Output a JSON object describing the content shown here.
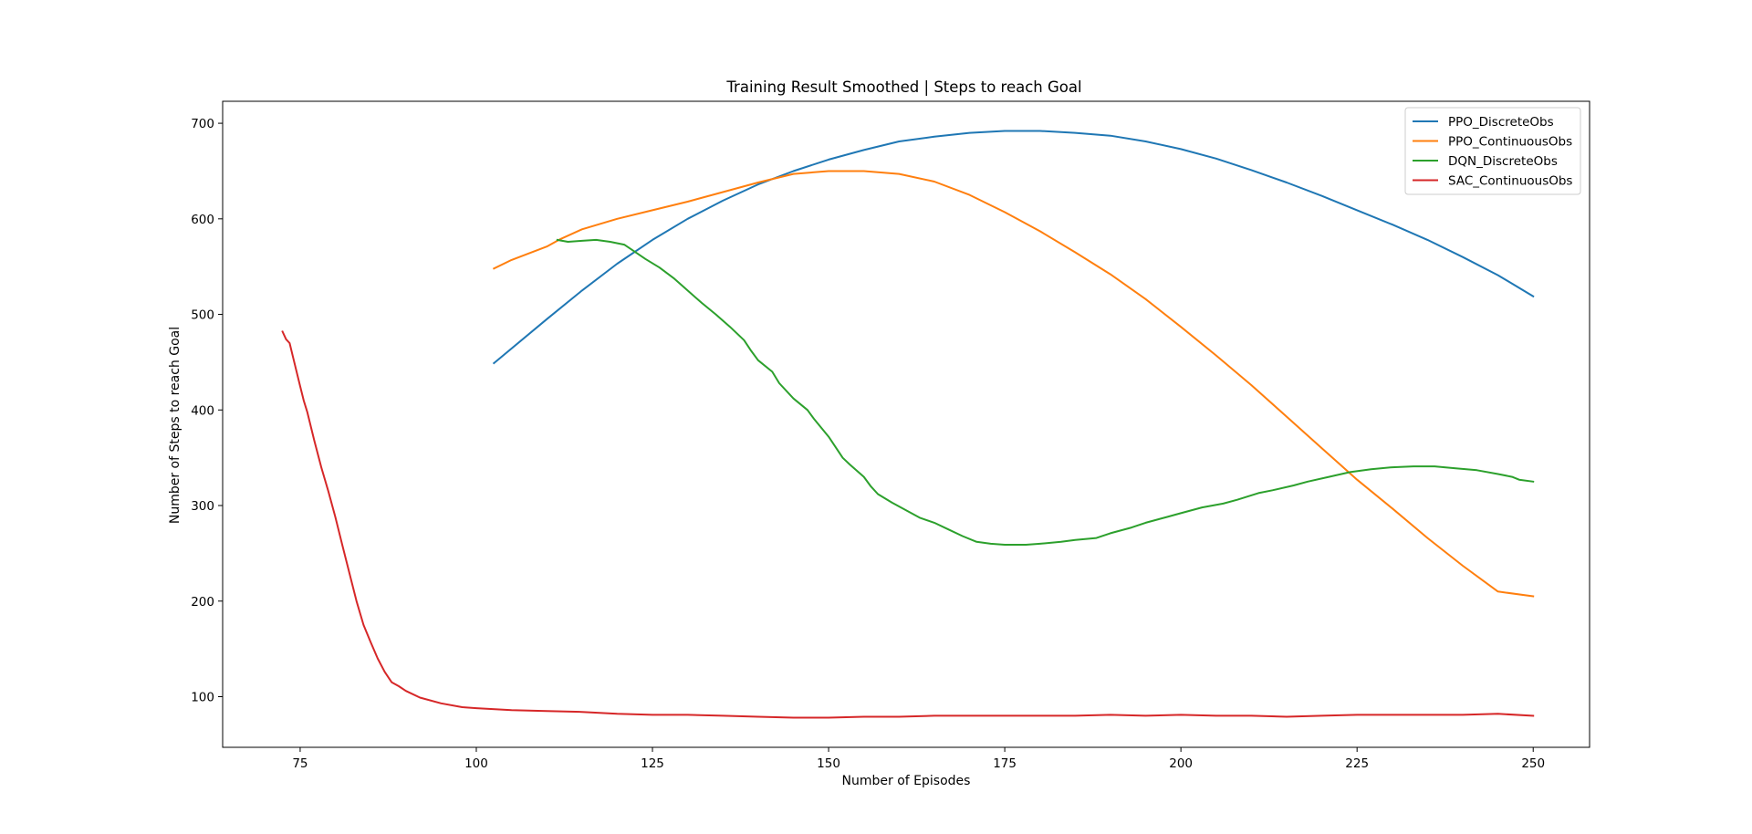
{
  "chart_data": {
    "type": "line",
    "title": "Training Result Smoothed | Steps to reach Goal",
    "xlabel": "Number of Episodes",
    "ylabel": "Number of Steps to reach Goal",
    "xlim": [
      64,
      258
    ],
    "ylim": [
      47,
      723
    ],
    "xticks": [
      75,
      100,
      125,
      150,
      175,
      200,
      225,
      250
    ],
    "yticks": [
      100,
      200,
      300,
      400,
      500,
      600,
      700
    ],
    "grid": false,
    "legend_position": "upper-right",
    "series": [
      {
        "name": "PPO_DiscreteObs",
        "color": "#1f77b4",
        "points": [
          [
            102.5,
            449
          ],
          [
            110,
            495
          ],
          [
            115,
            525
          ],
          [
            120,
            553
          ],
          [
            125,
            578
          ],
          [
            130,
            600
          ],
          [
            135,
            619
          ],
          [
            140,
            636
          ],
          [
            145,
            650
          ],
          [
            150,
            662
          ],
          [
            155,
            672
          ],
          [
            160,
            681
          ],
          [
            165,
            686
          ],
          [
            170,
            690
          ],
          [
            175,
            692
          ],
          [
            180,
            692
          ],
          [
            185,
            690
          ],
          [
            190,
            687
          ],
          [
            195,
            681
          ],
          [
            200,
            673
          ],
          [
            205,
            663
          ],
          [
            210,
            651
          ],
          [
            215,
            638
          ],
          [
            220,
            624
          ],
          [
            225,
            609
          ],
          [
            230,
            594
          ],
          [
            235,
            578
          ],
          [
            240,
            560
          ],
          [
            245,
            541
          ],
          [
            250,
            519
          ]
        ]
      },
      {
        "name": "PPO_ContinuousObs",
        "color": "#ff7f0e",
        "points": [
          [
            102.5,
            548
          ],
          [
            105,
            557
          ],
          [
            110,
            571
          ],
          [
            112,
            579
          ],
          [
            115,
            589
          ],
          [
            120,
            600
          ],
          [
            125,
            609
          ],
          [
            130,
            618
          ],
          [
            135,
            628
          ],
          [
            140,
            638
          ],
          [
            145,
            647
          ],
          [
            150,
            650
          ],
          [
            155,
            650
          ],
          [
            160,
            647
          ],
          [
            165,
            639
          ],
          [
            170,
            625
          ],
          [
            175,
            607
          ],
          [
            180,
            587
          ],
          [
            185,
            565
          ],
          [
            190,
            542
          ],
          [
            195,
            516
          ],
          [
            200,
            487
          ],
          [
            205,
            457
          ],
          [
            210,
            426
          ],
          [
            215,
            393
          ],
          [
            220,
            360
          ],
          [
            225,
            327
          ],
          [
            230,
            297
          ],
          [
            235,
            266
          ],
          [
            240,
            237
          ],
          [
            245,
            210
          ],
          [
            250,
            205
          ]
        ]
      },
      {
        "name": "DQN_DiscreteObs",
        "color": "#2ca02c",
        "points": [
          [
            111.5,
            578
          ],
          [
            113,
            576
          ],
          [
            115,
            577
          ],
          [
            117,
            578
          ],
          [
            119,
            576
          ],
          [
            121,
            573
          ],
          [
            122,
            568
          ],
          [
            124,
            558
          ],
          [
            126,
            549
          ],
          [
            128,
            538
          ],
          [
            130,
            525
          ],
          [
            132,
            512
          ],
          [
            134,
            500
          ],
          [
            136,
            487
          ],
          [
            138,
            473
          ],
          [
            139,
            462
          ],
          [
            140,
            452
          ],
          [
            142,
            440
          ],
          [
            143,
            428
          ],
          [
            145,
            412
          ],
          [
            147,
            400
          ],
          [
            148,
            390
          ],
          [
            150,
            372
          ],
          [
            152,
            350
          ],
          [
            153,
            343
          ],
          [
            155,
            330
          ],
          [
            156,
            320
          ],
          [
            157,
            312
          ],
          [
            159,
            303
          ],
          [
            161,
            295
          ],
          [
            163,
            287
          ],
          [
            165,
            282
          ],
          [
            167,
            275
          ],
          [
            169,
            268
          ],
          [
            171,
            262
          ],
          [
            173,
            260
          ],
          [
            175,
            259
          ],
          [
            178,
            259
          ],
          [
            180,
            260
          ],
          [
            183,
            262
          ],
          [
            185,
            264
          ],
          [
            188,
            266
          ],
          [
            190,
            271
          ],
          [
            193,
            277
          ],
          [
            195,
            282
          ],
          [
            198,
            288
          ],
          [
            200,
            292
          ],
          [
            203,
            298
          ],
          [
            206,
            302
          ],
          [
            208,
            306
          ],
          [
            211,
            313
          ],
          [
            213,
            316
          ],
          [
            216,
            321
          ],
          [
            218,
            325
          ],
          [
            221,
            330
          ],
          [
            224,
            335
          ],
          [
            227,
            338
          ],
          [
            230,
            340
          ],
          [
            233,
            341
          ],
          [
            236,
            341
          ],
          [
            239,
            339
          ],
          [
            242,
            337
          ],
          [
            245,
            333
          ],
          [
            247,
            330
          ],
          [
            248,
            327
          ],
          [
            250,
            325
          ]
        ]
      },
      {
        "name": "SAC_ContinuousObs",
        "color": "#d62728",
        "points": [
          [
            72.5,
            482
          ],
          [
            73,
            474
          ],
          [
            73.5,
            470
          ],
          [
            74,
            455
          ],
          [
            75,
            425
          ],
          [
            75.5,
            410
          ],
          [
            76,
            398
          ],
          [
            77,
            368
          ],
          [
            78,
            340
          ],
          [
            79,
            315
          ],
          [
            80,
            288
          ],
          [
            81,
            258
          ],
          [
            82,
            229
          ],
          [
            83,
            200
          ],
          [
            84,
            175
          ],
          [
            85,
            157
          ],
          [
            86,
            140
          ],
          [
            87,
            126
          ],
          [
            88,
            115
          ],
          [
            89,
            111
          ],
          [
            90,
            106
          ],
          [
            92,
            99
          ],
          [
            95,
            93
          ],
          [
            98,
            89
          ],
          [
            100,
            88
          ],
          [
            105,
            86
          ],
          [
            110,
            85
          ],
          [
            115,
            84
          ],
          [
            120,
            82
          ],
          [
            125,
            81
          ],
          [
            130,
            81
          ],
          [
            135,
            80
          ],
          [
            140,
            79
          ],
          [
            145,
            78
          ],
          [
            150,
            78
          ],
          [
            155,
            79
          ],
          [
            160,
            79
          ],
          [
            165,
            80
          ],
          [
            170,
            80
          ],
          [
            175,
            80
          ],
          [
            180,
            80
          ],
          [
            185,
            80
          ],
          [
            190,
            81
          ],
          [
            195,
            80
          ],
          [
            200,
            81
          ],
          [
            205,
            80
          ],
          [
            210,
            80
          ],
          [
            215,
            79
          ],
          [
            220,
            80
          ],
          [
            225,
            81
          ],
          [
            230,
            81
          ],
          [
            235,
            81
          ],
          [
            240,
            81
          ],
          [
            245,
            82
          ],
          [
            250,
            80
          ]
        ]
      }
    ]
  }
}
